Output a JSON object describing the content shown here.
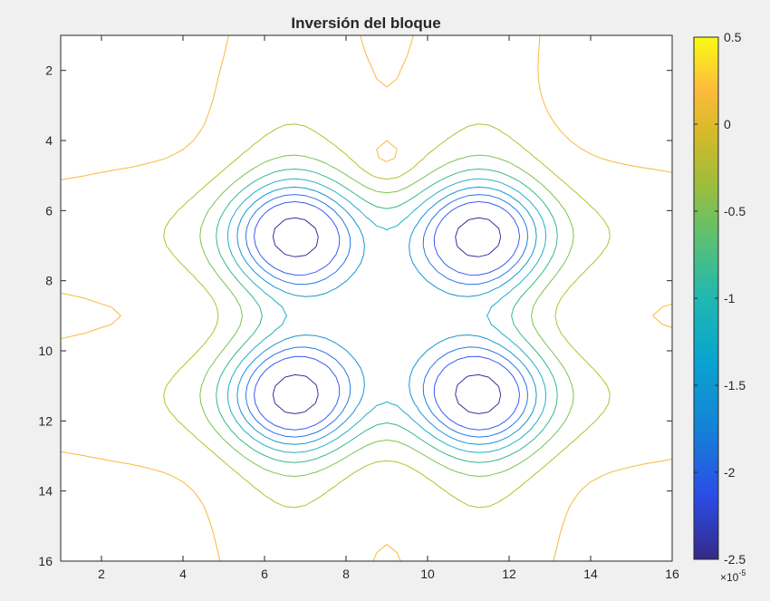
{
  "chart_data": {
    "type": "contour",
    "title": "Inversión del bloque",
    "xlabel": "",
    "ylabel": "",
    "xlim": [
      1,
      16
    ],
    "ylim": [
      1,
      16
    ],
    "y_direction": "reversed",
    "x_ticks": [
      "2",
      "4",
      "6",
      "8",
      "10",
      "12",
      "14",
      "16"
    ],
    "y_ticks": [
      "2",
      "4",
      "6",
      "8",
      "10",
      "12",
      "14",
      "16"
    ],
    "colorbar": {
      "colormap": "parula",
      "range": [
        -2.5,
        0.5
      ],
      "tick_labels": [
        "0.5",
        "0",
        "-0.5",
        "-1",
        "-1.5",
        "-2",
        "-2.5"
      ],
      "exponent_label": "×10",
      "exponent_power": "-5",
      "position": "right"
    },
    "contour_levels": [
      {
        "level": 0.25,
        "color": "#f9fb15"
      },
      {
        "level": 0.0,
        "color": "#f7ba3c"
      },
      {
        "level": -0.25,
        "color": "#b5c12c"
      },
      {
        "level": -0.5,
        "color": "#7cc350"
      },
      {
        "level": -0.75,
        "color": "#35b88e"
      },
      {
        "level": -1.0,
        "color": "#1fb0c6"
      },
      {
        "level": -1.25,
        "color": "#1696d2"
      },
      {
        "level": -1.5,
        "color": "#2876e6"
      },
      {
        "level": -1.75,
        "color": "#3b5cf0"
      },
      {
        "level": -2.25,
        "color": "#3a2f98"
      }
    ],
    "grid": false,
    "legend": "none"
  }
}
